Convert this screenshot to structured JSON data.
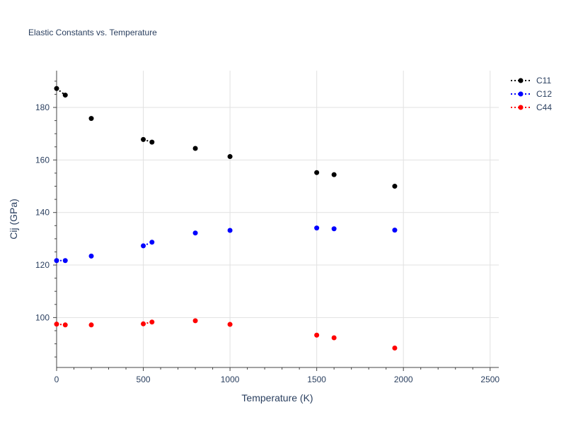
{
  "chart_data": {
    "type": "scatter",
    "title": "Elastic Constants vs. Temperature",
    "xlabel": "Temperature (K)",
    "ylabel": "Cij (GPa)",
    "xlim": [
      0,
      2550
    ],
    "ylim": [
      81,
      194
    ],
    "xticks": [
      0,
      500,
      1000,
      1500,
      2000,
      2500
    ],
    "yticks": [
      100,
      120,
      140,
      160,
      180
    ],
    "grid": true,
    "legend_position": "top-right",
    "series": [
      {
        "name": "C11",
        "color": "#000000",
        "points": [
          [
            0,
            187.2
          ],
          [
            50,
            184.7
          ],
          [
            200,
            175.8
          ],
          [
            500,
            167.8
          ],
          [
            550,
            166.8
          ],
          [
            800,
            164.4
          ],
          [
            1000,
            161.3
          ],
          [
            1500,
            155.2
          ],
          [
            1600,
            154.4
          ],
          [
            1950,
            150.0
          ]
        ]
      },
      {
        "name": "C12",
        "color": "#0000ff",
        "points": [
          [
            0,
            121.7
          ],
          [
            50,
            121.7
          ],
          [
            200,
            123.4
          ],
          [
            500,
            127.3
          ],
          [
            550,
            128.7
          ],
          [
            800,
            132.2
          ],
          [
            1000,
            133.2
          ],
          [
            1500,
            134.1
          ],
          [
            1600,
            133.8
          ],
          [
            1950,
            133.3
          ]
        ]
      },
      {
        "name": "C44",
        "color": "#ff0000",
        "points": [
          [
            0,
            97.5
          ],
          [
            50,
            97.2
          ],
          [
            200,
            97.2
          ],
          [
            500,
            97.6
          ],
          [
            550,
            98.3
          ],
          [
            800,
            98.8
          ],
          [
            1000,
            97.4
          ],
          [
            1500,
            93.3
          ],
          [
            1600,
            92.3
          ],
          [
            1950,
            88.4
          ]
        ]
      }
    ]
  }
}
